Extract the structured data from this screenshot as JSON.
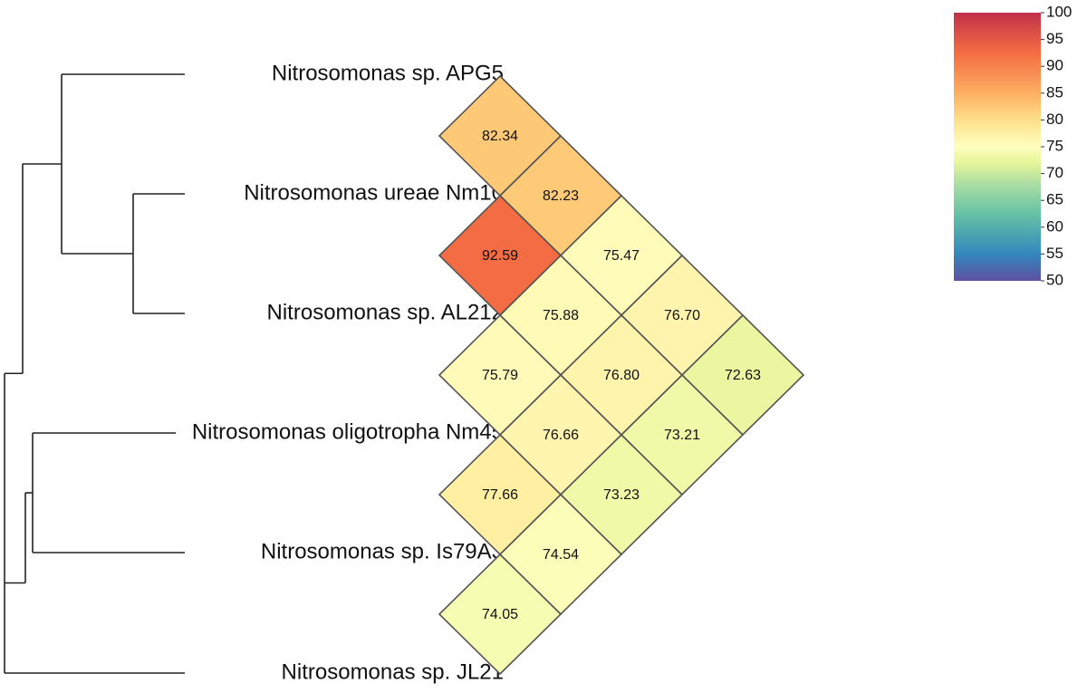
{
  "chart_data": {
    "type": "heatmap",
    "taxa": [
      "Nitrosomonas sp. APG5",
      "Nitrosomonas ureae Nm10",
      "Nitrosomonas sp. AL212",
      "Nitrosomonas oligotropha Nm45",
      "Nitrosomonas sp. Is79A3",
      "Nitrosomonas sp. JL21"
    ],
    "pairs": [
      {
        "a": 0,
        "b": 1,
        "value": 82.34
      },
      {
        "a": 0,
        "b": 2,
        "value": 82.23
      },
      {
        "a": 0,
        "b": 3,
        "value": 75.47
      },
      {
        "a": 0,
        "b": 4,
        "value": 76.7
      },
      {
        "a": 0,
        "b": 5,
        "value": 72.63
      },
      {
        "a": 1,
        "b": 2,
        "value": 92.59
      },
      {
        "a": 1,
        "b": 3,
        "value": 75.88
      },
      {
        "a": 1,
        "b": 4,
        "value": 76.8
      },
      {
        "a": 1,
        "b": 5,
        "value": 73.21
      },
      {
        "a": 2,
        "b": 3,
        "value": 75.79
      },
      {
        "a": 2,
        "b": 4,
        "value": 76.66
      },
      {
        "a": 2,
        "b": 5,
        "value": 73.23
      },
      {
        "a": 3,
        "b": 4,
        "value": 77.66
      },
      {
        "a": 3,
        "b": 5,
        "value": 74.54
      },
      {
        "a": 4,
        "b": 5,
        "value": 74.05
      }
    ],
    "color_scale": {
      "min": 50,
      "max": 100,
      "ticks": [
        100,
        95,
        90,
        85,
        80,
        75,
        70,
        65,
        60,
        55,
        50
      ],
      "palette": "Spectral",
      "stops": [
        {
          "value": 50,
          "color": "#5e4fa2"
        },
        {
          "value": 55,
          "color": "#3288bd"
        },
        {
          "value": 62.5,
          "color": "#66c2a5"
        },
        {
          "value": 68,
          "color": "#abdda4"
        },
        {
          "value": 72,
          "color": "#e6f598"
        },
        {
          "value": 75,
          "color": "#ffffbf"
        },
        {
          "value": 80,
          "color": "#fee08b"
        },
        {
          "value": 85,
          "color": "#fdae61"
        },
        {
          "value": 92.5,
          "color": "#f46d43"
        },
        {
          "value": 100,
          "color": "#c0304a"
        }
      ]
    },
    "tree": {
      "clusters": [
        [
          0,
          1,
          2
        ],
        [
          1,
          2
        ],
        [
          3,
          4
        ]
      ]
    },
    "legend": "top-right"
  }
}
